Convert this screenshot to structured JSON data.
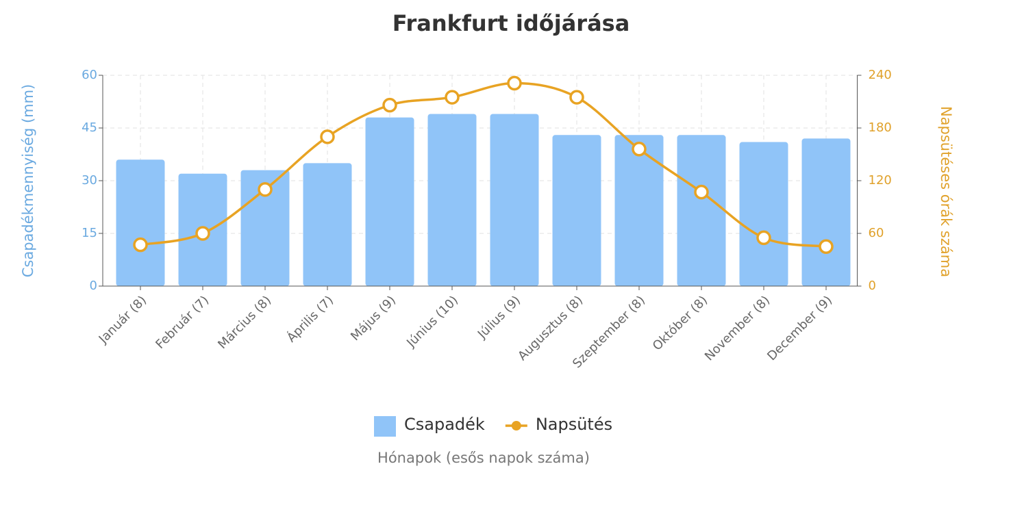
{
  "chart_data": {
    "type": "bar-line",
    "title": "Frankfurt időjárása",
    "x_label": "Hónapok (esős napok száma)",
    "y_label": "Csapadékmennyiség (mm)",
    "y2_label": "Napsütéses órák száma",
    "categories": [
      "Január (8)",
      "Február (7)",
      "Március (8)",
      "Április (7)",
      "Május (9)",
      "Június (10)",
      "Július (9)",
      "Augusztus (8)",
      "Szeptember (8)",
      "Október (8)",
      "November (8)",
      "December (9)"
    ],
    "series": [
      {
        "name": "Csapadék",
        "type": "bar",
        "color": "#90c4f8",
        "values": [
          36,
          32,
          33,
          35,
          48,
          49,
          49,
          43,
          43,
          43,
          41,
          42
        ]
      },
      {
        "name": "Napsütés",
        "type": "line",
        "axis": "y2",
        "color": "#e8a323",
        "values": [
          47,
          60,
          110,
          170,
          206,
          215,
          231,
          215,
          156,
          107,
          55,
          45
        ]
      }
    ],
    "ylim": [
      0,
      60
    ],
    "yticks": [
      0,
      15,
      30,
      45,
      60
    ],
    "y2lim": [
      0,
      240
    ],
    "y2ticks": [
      0,
      60,
      120,
      180,
      240
    ],
    "grid": true
  }
}
